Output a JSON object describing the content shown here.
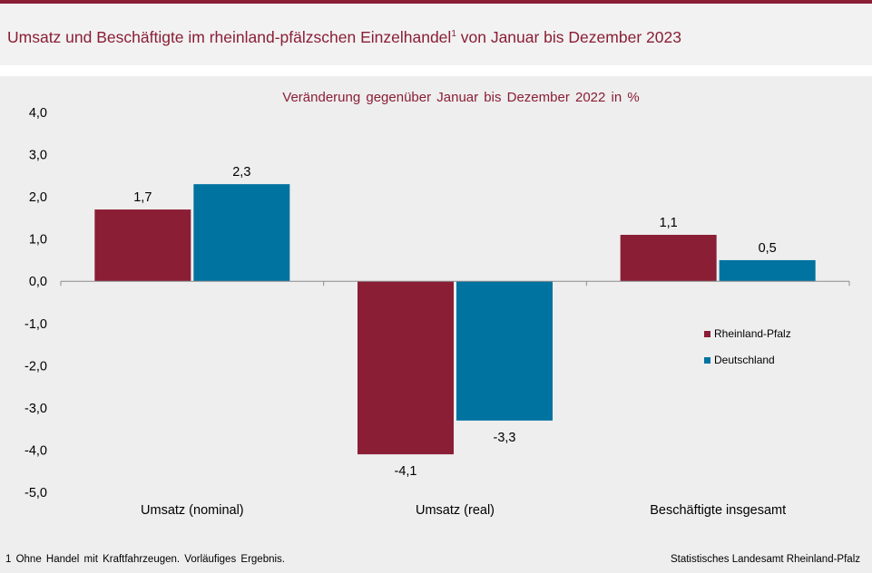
{
  "header": {
    "title": "Umsatz und Beschäftigte im rheinland-pfälzschen Einzelhandel",
    "title_sup": "1",
    "title_suffix": " von Januar bis Dezember 2023"
  },
  "chart_data": {
    "type": "bar",
    "subtitle": "Veränderung gegenüber Januar bis Dezember 2022 in %",
    "categories": [
      "Umsatz (nominal)",
      "Umsatz (real)",
      "Beschäftigte insgesamt"
    ],
    "series": [
      {
        "name": "Rheinland-Pfalz",
        "color": "#8a1e35",
        "values": [
          1.7,
          -4.1,
          1.1
        ],
        "labels": [
          "1,7",
          "-4,1",
          "1,1"
        ]
      },
      {
        "name": "Deutschland",
        "color": "#0073a0",
        "values": [
          2.3,
          -3.3,
          0.5
        ],
        "labels": [
          "2,3",
          "-3,3",
          "0,5"
        ]
      }
    ],
    "ylim": [
      -5,
      4
    ],
    "yticks": [
      4,
      3,
      2,
      1,
      0,
      -1,
      -2,
      -3,
      -4,
      -5
    ],
    "ytick_labels": [
      "4,0",
      "3,0",
      "2,0",
      "1,0",
      "0,0",
      "-1,0",
      "-2,0",
      "-3,0",
      "-4,0",
      "-5,0"
    ],
    "grid": false,
    "legend_position": "right"
  },
  "footer": {
    "footnote": "1 Ohne Handel mit Kraftfahrzeugen. Vorläufiges Ergebnis.",
    "source": "Statistisches Landesamt Rheinland-Pfalz"
  }
}
